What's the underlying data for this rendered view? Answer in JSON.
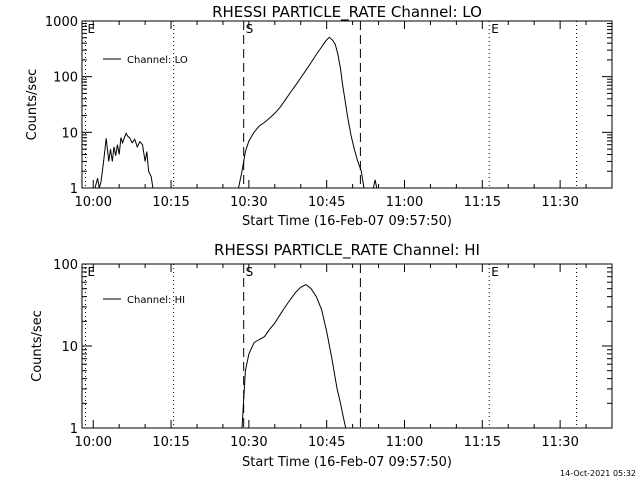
{
  "chart_data": [
    {
      "type": "line",
      "title": "RHESSI PARTICLE_RATE Channel: LO",
      "xlabel": "Start Time (16-Feb-07 09:57:50)",
      "ylabel": "Counts/sec",
      "xlim": [
        "09:57:50",
        "11:40:00"
      ],
      "ylim": [
        1,
        1000
      ],
      "yscale": "log",
      "xticks": [
        "10:00",
        "10:15",
        "10:30",
        "10:45",
        "11:00",
        "11:15",
        "11:30"
      ],
      "yticks": [
        "1",
        "10",
        "100",
        "1000"
      ],
      "legend": {
        "label": "Channel: LO",
        "position": "top-left"
      },
      "dashed_lines": [
        "10:29:00",
        "10:51:30"
      ],
      "dotted_lines": [
        "09:58:30",
        "10:15:30",
        "11:16:20",
        "11:33:10"
      ],
      "markers": [
        {
          "text": "E",
          "at": "09:58:30"
        },
        {
          "text": "S",
          "at": "10:29:00"
        },
        {
          "text": "E",
          "at": "11:16:20"
        }
      ],
      "series": [
        {
          "segments": [
            {
              "x": [
                "10:00:20",
                "10:00:50",
                "10:01:10",
                "10:01:30",
                "10:02:00",
                "10:02:30",
                "10:03:00",
                "10:03:20",
                "10:03:40",
                "10:04:00",
                "10:04:20",
                "10:04:40",
                "10:05:00",
                "10:05:20",
                "10:05:40",
                "10:06:00",
                "10:06:20",
                "10:06:40",
                "10:07:00",
                "10:07:30",
                "10:08:00",
                "10:08:30",
                "10:09:00",
                "10:09:30",
                "10:10:00",
                "10:10:20",
                "10:10:40",
                "10:11:10",
                "10:11:30"
              ],
              "y": [
                1.0,
                1.5,
                1.0,
                1.3,
                3.0,
                7.8,
                3.0,
                5.0,
                3.0,
                5.5,
                3.8,
                6.0,
                4.0,
                8.0,
                6.5,
                8.0,
                9.6,
                8.5,
                8.0,
                6.5,
                7.5,
                5.5,
                6.8,
                6.0,
                3.0,
                4.5,
                2.0,
                1.6,
                1.0
              ]
            },
            {
              "x": [
                "10:28:00",
                "10:28:40",
                "10:29:20",
                "10:30:00",
                "10:31:00",
                "10:32:00",
                "10:33:00",
                "10:34:00",
                "10:35:00",
                "10:36:00",
                "10:37:00",
                "10:38:00",
                "10:39:00",
                "10:40:00",
                "10:41:00",
                "10:42:00",
                "10:43:00",
                "10:44:00",
                "10:44:50",
                "10:45:30",
                "10:46:10",
                "10:46:40",
                "10:47:10",
                "10:47:40",
                "10:48:00",
                "10:48:30",
                "10:49:00",
                "10:49:40",
                "10:50:20",
                "10:51:00",
                "10:51:40",
                "10:52:10"
              ],
              "y": [
                1.0,
                2.0,
                4.5,
                7.0,
                10.0,
                13.0,
                15.0,
                18.0,
                22.0,
                28.0,
                38.0,
                52.0,
                70.0,
                95.0,
                130.0,
                180.0,
                250.0,
                340.0,
                440.0,
                510.0,
                450.0,
                380.0,
                250.0,
                140.0,
                80.0,
                40.0,
                20.0,
                9.0,
                5.0,
                3.0,
                2.0,
                1.0
              ]
            },
            {
              "x": [
                "10:54:00",
                "10:54:20",
                "10:54:40"
              ],
              "y": [
                1.0,
                1.4,
                1.0
              ]
            }
          ]
        }
      ]
    },
    {
      "type": "line",
      "title": "RHESSI PARTICLE_RATE Channel: HI",
      "xlabel": "Start Time (16-Feb-07 09:57:50)",
      "ylabel": "Counts/sec",
      "xlim": [
        "09:57:50",
        "11:40:00"
      ],
      "ylim": [
        1,
        100
      ],
      "yscale": "log",
      "xticks": [
        "10:00",
        "10:15",
        "10:30",
        "10:45",
        "11:00",
        "11:15",
        "11:30"
      ],
      "yticks": [
        "1",
        "10",
        "100"
      ],
      "legend": {
        "label": "Channel: HI",
        "position": "top-left"
      },
      "dashed_lines": [
        "10:29:00",
        "10:51:30"
      ],
      "dotted_lines": [
        "09:58:30",
        "10:15:30",
        "11:16:20",
        "11:33:10"
      ],
      "markers": [
        {
          "text": "E",
          "at": "09:58:30"
        },
        {
          "text": "S",
          "at": "10:29:00"
        },
        {
          "text": "E",
          "at": "11:16:20"
        }
      ],
      "series": [
        {
          "segments": [
            {
              "x": [
                "10:28:40",
                "10:29:20",
                "10:30:00",
                "10:31:00",
                "10:32:00",
                "10:33:00",
                "10:34:00",
                "10:35:00",
                "10:36:00",
                "10:37:00",
                "10:38:00",
                "10:39:00",
                "10:40:00",
                "10:41:00",
                "10:42:00",
                "10:43:00",
                "10:44:00",
                "10:45:00",
                "10:46:00",
                "10:47:00",
                "10:47:40",
                "10:48:10",
                "10:48:40"
              ],
              "y": [
                1.0,
                5.0,
                8.0,
                11.0,
                12.0,
                13.0,
                16.0,
                19.0,
                24.0,
                30.0,
                37.0,
                45.0,
                52.0,
                56.0,
                50.0,
                40.0,
                28.0,
                15.0,
                7.0,
                3.0,
                2.0,
                1.4,
                1.0
              ]
            }
          ]
        }
      ]
    }
  ],
  "footer": {
    "timestamp": "14-Oct-2021 05:32"
  }
}
